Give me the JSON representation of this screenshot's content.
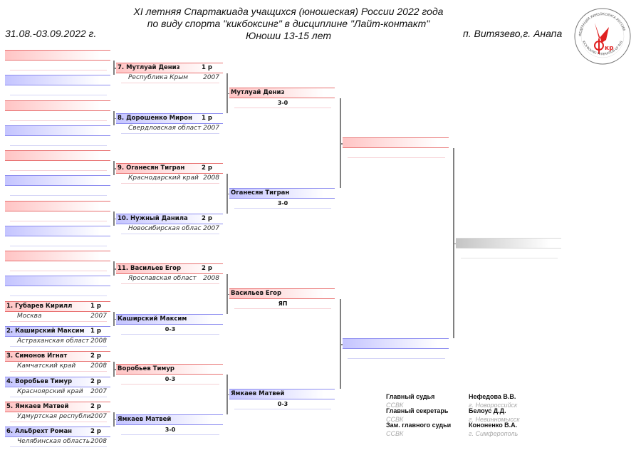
{
  "header": {
    "title_lines": [
      "XI летняя Спартакиада учащихся (юношеская) России 2022 года",
      "по виду спорта \"кикбоксинг\" в дисциплине \"Лайт-контакт\"",
      "Юноши 13-15 лет"
    ],
    "dates": "31.08.-03.09.2022 г.",
    "place": "п. Витязево,г. Анапа",
    "logo_text": [
      "ФЕДЕРАЦИЯ КИКБОКСИНГА РОССИИ",
      "KICK-BOXING FEDERATION OF RUSSIA",
      "ФКР"
    ]
  },
  "colors": {
    "red": "#e04848",
    "blue": "#4848e0",
    "gray": "#b0b0b0"
  },
  "rounds": [
    {
      "slots": [
        {
          "color": "red"
        },
        {
          "color": "blue"
        },
        {
          "color": "red"
        },
        {
          "color": "blue"
        },
        {
          "color": "red"
        },
        {
          "color": "blue"
        },
        {
          "color": "red"
        },
        {
          "color": "blue"
        },
        {
          "color": "red"
        },
        {
          "color": "blue"
        },
        {
          "color": "red",
          "name": "1. Губарев Кирилл",
          "rank": "1 р",
          "region": "Москва",
          "year": "2007"
        },
        {
          "color": "blue",
          "name": "2. Каширский Максим",
          "rank": "1 р",
          "region": "Астраханская област",
          "year": "2008"
        },
        {
          "color": "red",
          "name": "3. Симонов Игнат",
          "rank": "2 р",
          "region": "Камчатский край",
          "year": "2008"
        },
        {
          "color": "blue",
          "name": "4. Воробьев Тимур",
          "rank": "2 р",
          "region": "Красноярский край",
          "year": "2007"
        },
        {
          "color": "red",
          "name": "5. Ямкаев Матвей",
          "rank": "2 р",
          "region": "Удмуртская республи",
          "year": "2007"
        },
        {
          "color": "blue",
          "name": "6. Альбрехт Роман",
          "rank": "2 р",
          "region": "Челябинская область",
          "year": "2008"
        }
      ]
    },
    {
      "slots": [
        {
          "color": "red",
          "name": "7. Мутлуай Дениз",
          "rank": "1 р",
          "region": "Республика Крым",
          "year": "2007"
        },
        {
          "color": "blue",
          "name": "8. Дорошенко Мирон",
          "rank": "1 р",
          "region": "Свердловская област",
          "year": "2007"
        },
        {
          "color": "red",
          "name": "9. Оганесян Тигран",
          "rank": "2 р",
          "region": "Краснодарский край",
          "year": "2008"
        },
        {
          "color": "blue",
          "name": "10. Нужный Данила",
          "rank": "2 р",
          "region": "Новосибирская облас",
          "year": "2007"
        },
        {
          "color": "red",
          "name": "11. Васильев Егор",
          "rank": "2 р",
          "region": "Ярославская област",
          "year": "2008"
        },
        {
          "color": "blue",
          "name": "Каширский Максим",
          "score": "0-3"
        },
        {
          "color": "red",
          "name": "Воробьев Тимур",
          "score": "0-3"
        },
        {
          "color": "blue",
          "name": "Ямкаев Матвей",
          "score": "3-0"
        }
      ]
    },
    {
      "slots": [
        {
          "color": "red",
          "name": "Мутлуай Дениз",
          "score": "3-0"
        },
        {
          "color": "blue",
          "name": "Оганесян Тигран",
          "score": "3-0"
        },
        {
          "color": "red",
          "name": "Васильев Егор",
          "score": "ЯП"
        },
        {
          "color": "blue",
          "name": "Ямкаев Матвей",
          "score": "0-3"
        }
      ]
    },
    {
      "slots": [
        {
          "color": "red"
        },
        {
          "color": "blue"
        }
      ]
    },
    {
      "slots": [
        {
          "color": "gray"
        }
      ]
    }
  ],
  "officials": [
    {
      "role": "Главный судья",
      "org": "ССВК",
      "name": "Нефедова В.В.",
      "city": "г. Новороссийск"
    },
    {
      "role": "Главный секретарь",
      "org": "ССВК",
      "name": "Белоус Д.Д.",
      "city": "г. Невинномысск"
    },
    {
      "role": "Зам. главного судьи",
      "org": "ССВК",
      "name": "Кононенко В.А.",
      "city": "г. Симферополь"
    }
  ]
}
